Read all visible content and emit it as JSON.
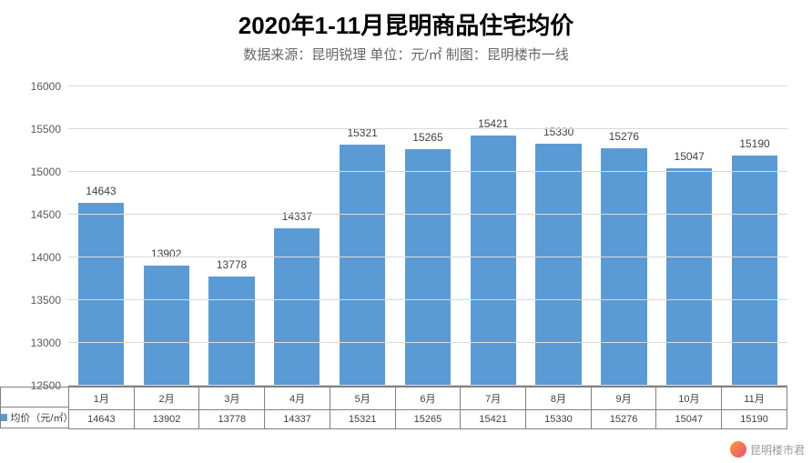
{
  "chart": {
    "type": "bar",
    "title": "2020年1-11月昆明商品住宅均价",
    "title_fontsize": 26,
    "title_color": "#000000",
    "subtitle": "数据来源：昆明锐理  单位：元/㎡   制图：昆明楼市一线",
    "subtitle_fontsize": 15,
    "subtitle_color": "#666666",
    "background_color": "#ffffff",
    "categories": [
      "1月",
      "2月",
      "3月",
      "4月",
      "5月",
      "6月",
      "7月",
      "8月",
      "9月",
      "10月",
      "11月"
    ],
    "values": [
      14643,
      13902,
      13778,
      14337,
      15321,
      15265,
      15421,
      15330,
      15276,
      15047,
      15190
    ],
    "bar_color": "#5b9bd5",
    "bar_width": 0.7,
    "ylim": [
      12500,
      16000
    ],
    "ytick_step": 500,
    "yticks": [
      12500,
      13000,
      13500,
      14000,
      14500,
      15000,
      15500,
      16000
    ],
    "grid_color": "#d9d9d9",
    "axis_line_color": "#808080",
    "tick_label_color": "#595959",
    "tick_label_fontsize": 12,
    "data_label_fontsize": 12,
    "data_label_color": "#404040",
    "series_name": "均价（元/㎡）",
    "table_border_color": "#808080",
    "table_fontsize": 11
  },
  "watermark": {
    "text": "昆明楼市君",
    "color": "#888888"
  }
}
